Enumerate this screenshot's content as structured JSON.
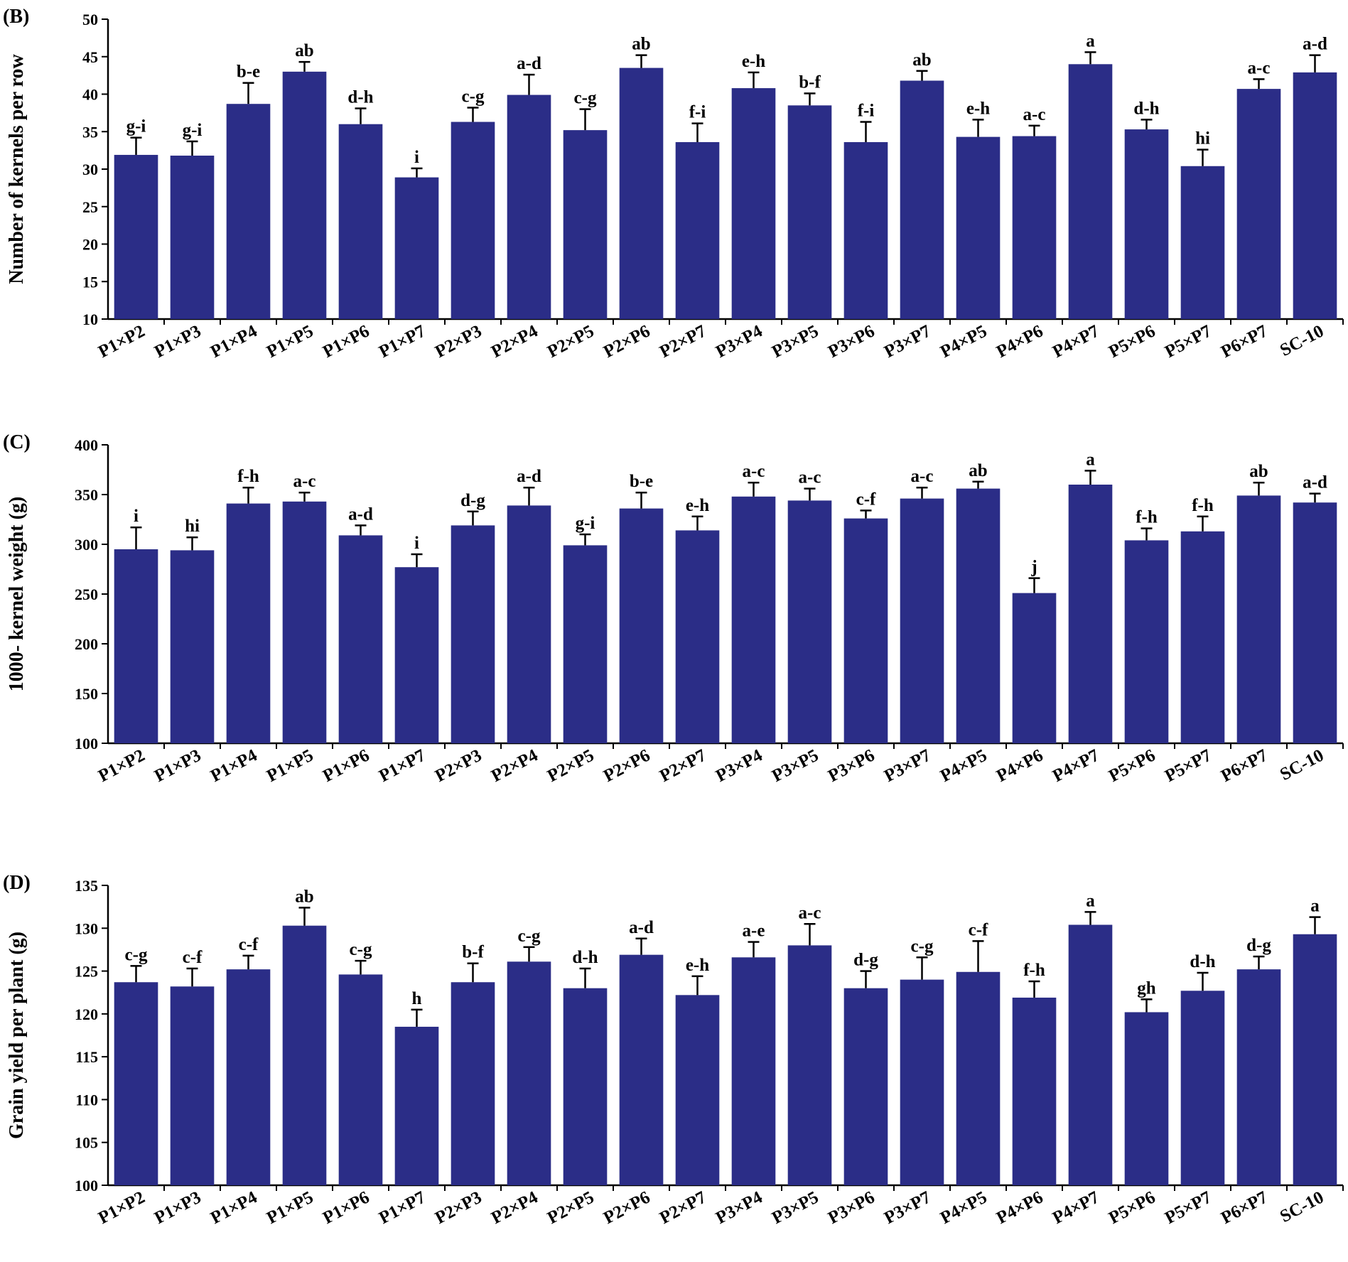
{
  "colors": {
    "bar": "#2b2d87",
    "axis": "#000000",
    "text": "#000000"
  },
  "chart_data": [
    {
      "type": "bar",
      "panel": "(B)",
      "title": "",
      "xlabel": "",
      "ylabel": "Number of kernels per row",
      "ylim": [
        10,
        50
      ],
      "yticks": [
        10,
        15,
        20,
        25,
        30,
        35,
        40,
        45,
        50
      ],
      "grid": false,
      "categories": [
        "P1×P2",
        "P1×P3",
        "P1×P4",
        "P1×P5",
        "P1×P6",
        "P1×P7",
        "P2×P3",
        "P2×P4",
        "P2×P5",
        "P2×P6",
        "P2×P7",
        "P3×P4",
        "P3×P5",
        "P3×P6",
        "P3×P7",
        "P4×P5",
        "P4×P6",
        "P4×P7",
        "P5×P6",
        "P5×P7",
        "P6×P7",
        "SC-10"
      ],
      "values": [
        31.9,
        31.8,
        38.7,
        43.0,
        36.0,
        28.9,
        36.3,
        39.9,
        35.2,
        43.5,
        33.6,
        40.8,
        38.5,
        33.6,
        41.8,
        34.3,
        34.4,
        44.0,
        35.3,
        30.4,
        40.7,
        42.9
      ],
      "errors": [
        2.3,
        1.9,
        2.8,
        1.3,
        2.1,
        1.2,
        1.9,
        2.7,
        2.8,
        1.7,
        2.5,
        2.1,
        1.6,
        2.7,
        1.3,
        2.3,
        1.4,
        1.6,
        1.3,
        2.2,
        1.3,
        2.3
      ],
      "letters": [
        "g-i",
        "g-i",
        "b-e",
        "ab",
        "d-h",
        "i",
        "c-g",
        "a-d",
        "c-g",
        "ab",
        "f-i",
        "e-h",
        "b-f",
        "f-i",
        "ab",
        "e-h",
        "a-c",
        "a",
        "d-h",
        "hi",
        "a-c",
        "a-d"
      ]
    },
    {
      "type": "bar",
      "panel": "(C)",
      "title": "",
      "xlabel": "",
      "ylabel": "1000- kernel weight (g)",
      "ylim": [
        100,
        400
      ],
      "yticks": [
        100,
        150,
        200,
        250,
        300,
        350,
        400
      ],
      "grid": false,
      "categories": [
        "P1×P2",
        "P1×P3",
        "P1×P4",
        "P1×P5",
        "P1×P6",
        "P1×P7",
        "P2×P3",
        "P2×P4",
        "P2×P5",
        "P2×P6",
        "P2×P7",
        "P3×P4",
        "P3×P5",
        "P3×P6",
        "P3×P7",
        "P4×P5",
        "P4×P6",
        "P4×P7",
        "P5×P6",
        "P5×P7",
        "P6×P7",
        "SC-10"
      ],
      "values": [
        295,
        294,
        341,
        343,
        309,
        277,
        319,
        339,
        299,
        336,
        314,
        348,
        344,
        326,
        346,
        356,
        251,
        360,
        304,
        313,
        349,
        342
      ],
      "errors": [
        22,
        13,
        16,
        9,
        10,
        13,
        14,
        18,
        11,
        16,
        14,
        14,
        12,
        8,
        11,
        7,
        15,
        14,
        12,
        15,
        13,
        9
      ],
      "letters": [
        "i",
        "hi",
        "f-h",
        "a-c",
        "a-d",
        "i",
        "d-g",
        "a-d",
        "g-i",
        "b-e",
        "e-h",
        "a-c",
        "a-c",
        "c-f",
        "a-c",
        "ab",
        "j",
        "a",
        "f-h",
        "f-h",
        "ab",
        "a-d"
      ]
    },
    {
      "type": "bar",
      "panel": "(D)",
      "title": "",
      "xlabel": "",
      "ylabel": "Grain yield per plant (g)",
      "ylim": [
        100,
        135
      ],
      "yticks": [
        100,
        105,
        110,
        115,
        120,
        125,
        130,
        135
      ],
      "grid": false,
      "categories": [
        "P1×P2",
        "P1×P3",
        "P1×P4",
        "P1×P5",
        "P1×P6",
        "P1×P7",
        "P2×P3",
        "P2×P4",
        "P2×P5",
        "P2×P6",
        "P2×P7",
        "P3×P4",
        "P3×P5",
        "P3×P6",
        "P3×P7",
        "P4×P5",
        "P4×P6",
        "P4×P7",
        "P5×P6",
        "P5×P7",
        "P6×P7",
        "SC-10"
      ],
      "values": [
        123.7,
        123.2,
        125.2,
        130.3,
        124.6,
        118.5,
        123.7,
        126.1,
        123.0,
        126.9,
        122.2,
        126.6,
        128.0,
        123.0,
        124.0,
        124.9,
        121.9,
        130.4,
        120.2,
        122.7,
        125.2,
        129.3
      ],
      "errors": [
        1.9,
        2.1,
        1.6,
        2.1,
        1.6,
        2.0,
        2.2,
        1.7,
        2.3,
        1.9,
        2.2,
        1.8,
        2.5,
        2.0,
        2.6,
        3.6,
        1.9,
        1.5,
        1.5,
        2.1,
        1.5,
        2.0
      ],
      "letters": [
        "c-g",
        "c-f",
        "c-f",
        "ab",
        "c-g",
        "h",
        "b-f",
        "c-g",
        "d-h",
        "a-d",
        "e-h",
        "a-e",
        "a-c",
        "d-g",
        "c-g",
        "c-f",
        "f-h",
        "a",
        "gh",
        "d-h",
        "d-g",
        "a"
      ]
    }
  ]
}
